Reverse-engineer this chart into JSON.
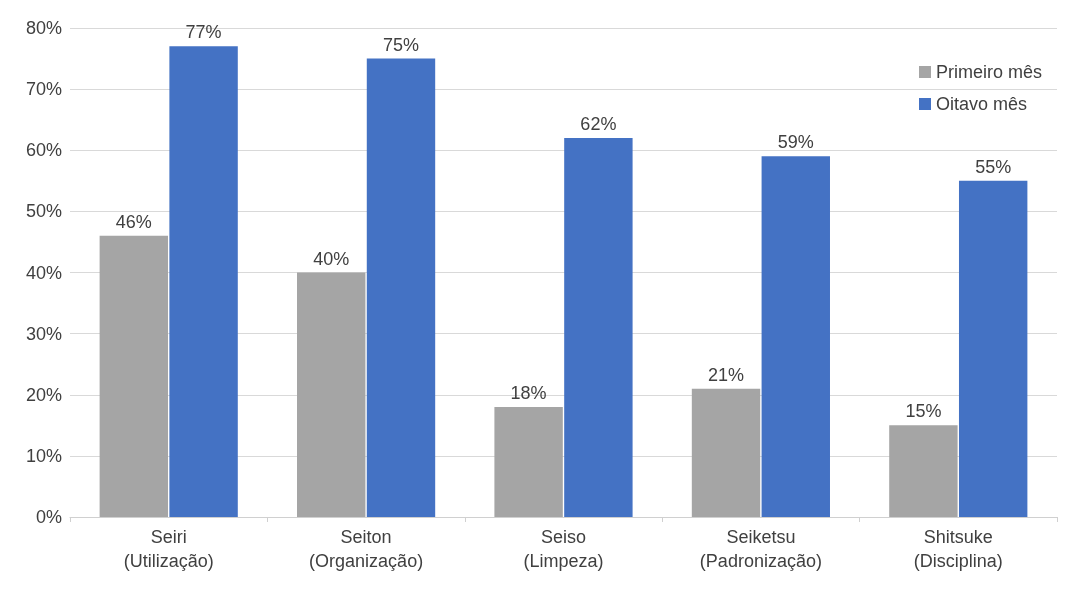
{
  "chart_data": {
    "type": "bar",
    "categories": [
      "Seiri\n(Utilização)",
      "Seiton\n(Organização)",
      "Seiso\n(Limpeza)",
      "Seiketsu\n(Padronização)",
      "Shitsuke\n(Disciplina)"
    ],
    "series": [
      {
        "name": "Primeiro mês",
        "color": "#a5a5a5",
        "values": [
          46,
          40,
          18,
          21,
          15
        ],
        "value_labels": [
          "46%",
          "40%",
          "18%",
          "21%",
          "15%"
        ]
      },
      {
        "name": "Oitavo mês",
        "color": "#4472c4",
        "values": [
          77,
          75,
          62,
          59,
          55
        ],
        "value_labels": [
          "77%",
          "75%",
          "62%",
          "59%",
          "55%"
        ]
      }
    ],
    "ylim": [
      0,
      80
    ],
    "yticks": [
      {
        "value": 0,
        "label": "0%"
      },
      {
        "value": 10,
        "label": "10%"
      },
      {
        "value": 20,
        "label": "20%"
      },
      {
        "value": 30,
        "label": "30%"
      },
      {
        "value": 40,
        "label": "40%"
      },
      {
        "value": 50,
        "label": "50%"
      },
      {
        "value": 60,
        "label": "60%"
      },
      {
        "value": 70,
        "label": "70%"
      },
      {
        "value": 80,
        "label": "80%"
      }
    ],
    "grid": "y",
    "legend": "top right"
  }
}
